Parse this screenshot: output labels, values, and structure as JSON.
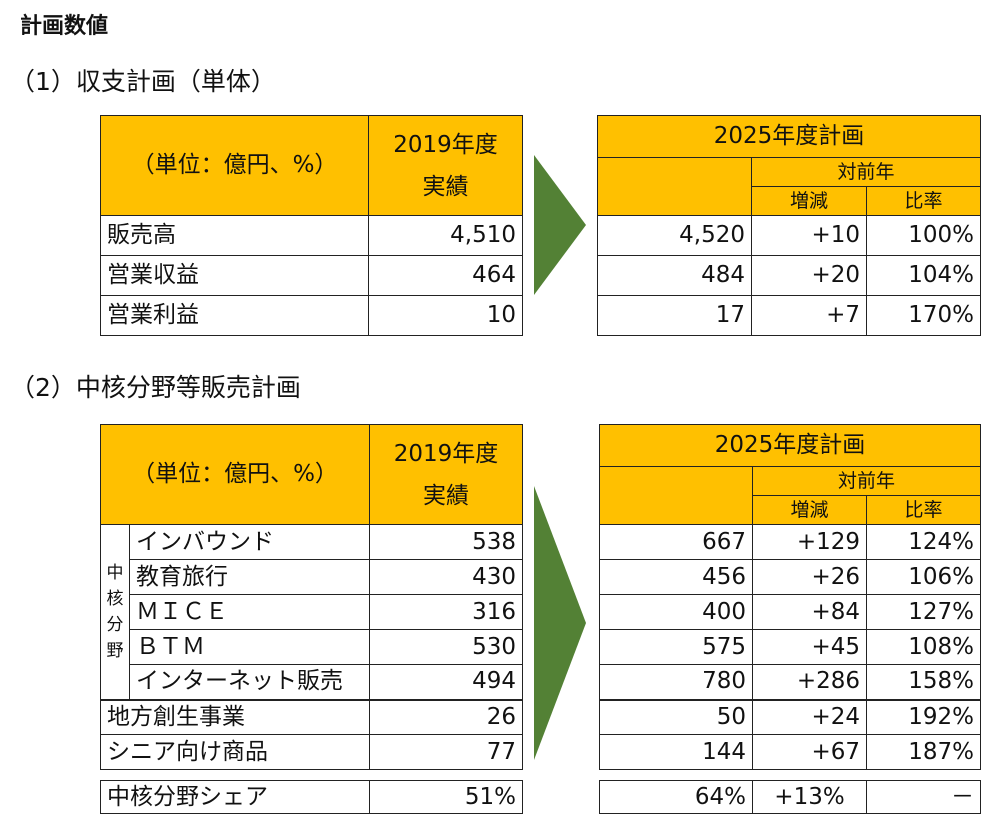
{
  "page_title": "計画数値",
  "section1": {
    "heading": "（1）収支計画（単体）",
    "left": {
      "unit_label": "（単位：億円、%）",
      "col_header": [
        "2019年度",
        "実績"
      ],
      "rows": [
        {
          "label": "販売高",
          "value": "4,510"
        },
        {
          "label": "営業収益",
          "value": "464"
        },
        {
          "label": "営業利益",
          "value": "10"
        }
      ]
    },
    "right": {
      "title": "2025年度計画",
      "yoy": "対前年",
      "diff": "増減",
      "ratio": "比率",
      "rows": [
        {
          "value": "4,520",
          "diff": "+10",
          "ratio": "100%"
        },
        {
          "value": "484",
          "diff": "+20",
          "ratio": "104%"
        },
        {
          "value": "17",
          "diff": "+7",
          "ratio": "170%"
        }
      ]
    }
  },
  "section2": {
    "heading": "（2）中核分野等販売計画",
    "left": {
      "unit_label": "（単位：億円、%）",
      "col_header": [
        "2019年度",
        "実績"
      ],
      "core_label": "中核分野",
      "core_rows": [
        {
          "label": "インバウンド",
          "value": "538"
        },
        {
          "label": "教育旅行",
          "value": "430"
        },
        {
          "label": "ＭＩＣＥ",
          "value": "316"
        },
        {
          "label": "ＢＴＭ",
          "value": "530"
        },
        {
          "label": "インターネット販売",
          "value": "494"
        }
      ],
      "other_rows": [
        {
          "label": "地方創生事業",
          "value": "26"
        },
        {
          "label": "シニア向け商品",
          "value": "77"
        }
      ],
      "share_row": {
        "label": "中核分野シェア",
        "value": "51%"
      }
    },
    "right": {
      "title": "2025年度計画",
      "yoy": "対前年",
      "diff": "増減",
      "ratio": "比率",
      "core_rows": [
        {
          "value": "667",
          "diff": "+129",
          "ratio": "124%"
        },
        {
          "value": "456",
          "diff": "+26",
          "ratio": "106%"
        },
        {
          "value": "400",
          "diff": "+84",
          "ratio": "127%"
        },
        {
          "value": "575",
          "diff": "+45",
          "ratio": "108%"
        },
        {
          "value": "780",
          "diff": "+286",
          "ratio": "158%"
        }
      ],
      "other_rows": [
        {
          "value": "50",
          "diff": "+24",
          "ratio": "192%"
        },
        {
          "value": "144",
          "diff": "+67",
          "ratio": "187%"
        }
      ],
      "share_row": {
        "value": "64%",
        "diff": "+13%",
        "ratio": "－"
      }
    }
  },
  "colors": {
    "header": "#FFC000",
    "arrow": "#538135"
  }
}
